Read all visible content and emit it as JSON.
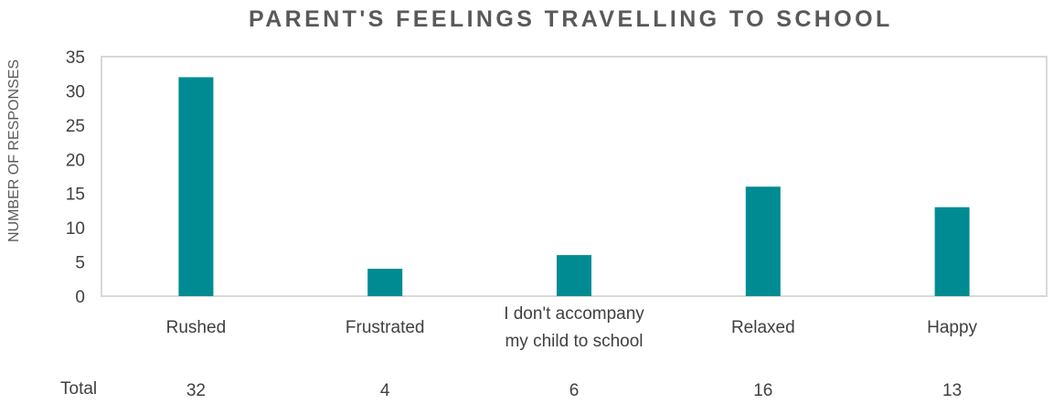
{
  "chart_data": {
    "type": "bar",
    "title": "PARENT'S FEELINGS TRAVELLING TO SCHOOL",
    "xlabel": "",
    "ylabel": "NUMBER OF RESPONSES",
    "categories": [
      "Rushed",
      "Frustrated",
      "I don't accompany my child to school",
      "Relaxed",
      "Happy"
    ],
    "values": [
      32,
      4,
      6,
      16,
      13
    ],
    "ylim": [
      0,
      35
    ],
    "yticks": [
      "0",
      "5",
      "10",
      "15",
      "20",
      "25",
      "30",
      "35"
    ],
    "grid": false,
    "legend": "none",
    "bar_color": "#008B93",
    "axis_color": "#D9D9D9",
    "table": {
      "row_label": "Total",
      "values": [
        "32",
        "4",
        "6",
        "16",
        "13"
      ]
    }
  }
}
